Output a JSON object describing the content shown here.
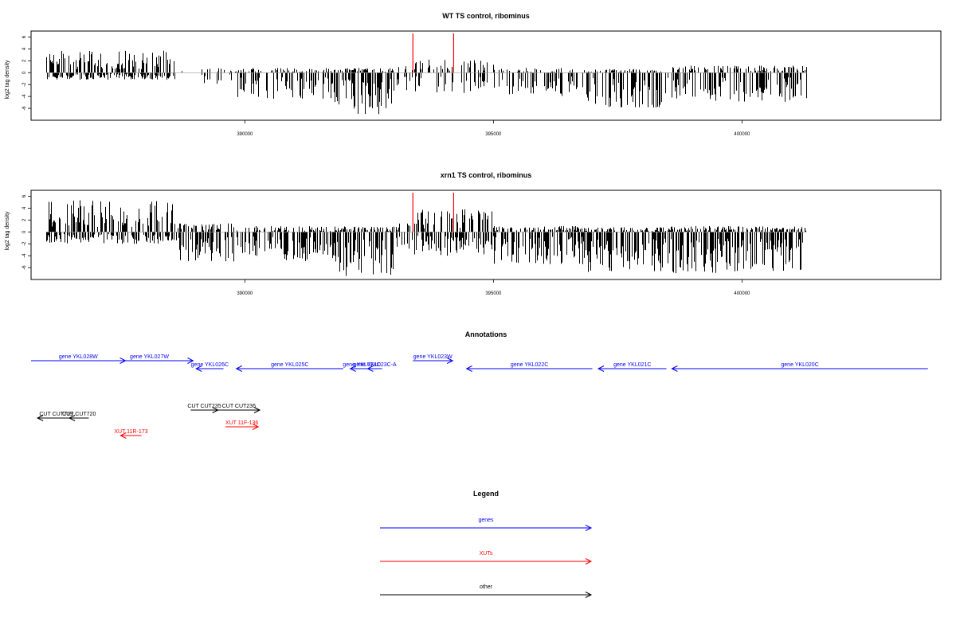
{
  "chart_data": [
    {
      "type": "bar",
      "title": "WT TS control, ribominus",
      "ylabel": "log2 tag density",
      "xlabel": "",
      "xlim": [
        385700,
        404000
      ],
      "ylim": [
        -8,
        7
      ],
      "yticks": [
        -6,
        -4,
        -2,
        0,
        2,
        4,
        6
      ],
      "xticks": [
        390000,
        395000,
        400000
      ],
      "xtick_labels": [
        "390000",
        "395000",
        "400000"
      ],
      "data_range": [
        386000,
        401300
      ],
      "marker_lines": [
        393380,
        394200
      ],
      "profile": [
        {
          "from": 386000,
          "to": 388600,
          "pos": 3.8,
          "neg": 1.2,
          "density": 1.0
        },
        {
          "from": 388600,
          "to": 389800,
          "pos": 1.0,
          "neg": 2.0,
          "density": 0.2
        },
        {
          "from": 389800,
          "to": 391800,
          "pos": 0.8,
          "neg": 4.5,
          "density": 0.7
        },
        {
          "from": 391800,
          "to": 393000,
          "pos": 0.8,
          "neg": 7.0,
          "density": 1.0
        },
        {
          "from": 393000,
          "to": 393400,
          "pos": 1.2,
          "neg": 3.0,
          "density": 0.3
        },
        {
          "from": 393400,
          "to": 395000,
          "pos": 2.2,
          "neg": 3.5,
          "density": 0.5
        },
        {
          "from": 395000,
          "to": 396800,
          "pos": 0.8,
          "neg": 4.0,
          "density": 0.6
        },
        {
          "from": 396800,
          "to": 398500,
          "pos": 0.6,
          "neg": 6.0,
          "density": 0.8
        },
        {
          "from": 398500,
          "to": 401300,
          "pos": 1.2,
          "neg": 5.0,
          "density": 0.8
        }
      ]
    },
    {
      "type": "bar",
      "title": "xrn1 TS control, ribominus",
      "ylabel": "log2 tag density",
      "xlabel": "",
      "xlim": [
        385700,
        404000
      ],
      "ylim": [
        -8,
        7
      ],
      "yticks": [
        -6,
        -4,
        -2,
        0,
        2,
        4,
        6
      ],
      "xticks": [
        390000,
        395000,
        400000
      ],
      "xtick_labels": [
        "390000",
        "395000",
        "400000"
      ],
      "data_range": [
        386000,
        401300
      ],
      "marker_lines": [
        393380,
        394200
      ],
      "profile": [
        {
          "from": 386000,
          "to": 388600,
          "pos": 5.5,
          "neg": 2.0,
          "density": 1.0
        },
        {
          "from": 388600,
          "to": 389800,
          "pos": 1.5,
          "neg": 5.0,
          "density": 0.7
        },
        {
          "from": 389800,
          "to": 391800,
          "pos": 1.0,
          "neg": 5.0,
          "density": 0.8
        },
        {
          "from": 391800,
          "to": 393000,
          "pos": 1.0,
          "neg": 7.5,
          "density": 1.0
        },
        {
          "from": 393000,
          "to": 393400,
          "pos": 1.5,
          "neg": 3.0,
          "density": 0.5
        },
        {
          "from": 393400,
          "to": 395000,
          "pos": 3.8,
          "neg": 4.0,
          "density": 0.9
        },
        {
          "from": 395000,
          "to": 396800,
          "pos": 1.0,
          "neg": 5.5,
          "density": 0.9
        },
        {
          "from": 396800,
          "to": 398500,
          "pos": 0.8,
          "neg": 7.0,
          "density": 1.0
        },
        {
          "from": 398500,
          "to": 401300,
          "pos": 1.0,
          "neg": 7.0,
          "density": 1.0
        }
      ]
    }
  ],
  "annotations": {
    "title": "Annotations",
    "features": [
      {
        "label": "gene YKL028W",
        "kind": "gene",
        "strand": "+",
        "row": 0,
        "start": 385700,
        "end": 387600
      },
      {
        "label": "gene YKL027W",
        "kind": "gene",
        "strand": "+",
        "row": 0,
        "start": 387200,
        "end": 388960
      },
      {
        "label": "gene YKL026C",
        "kind": "gene",
        "strand": "-",
        "row": 1,
        "start": 389020,
        "end": 389570
      },
      {
        "label": "gene YKL025C",
        "kind": "gene",
        "strand": "-",
        "row": 1,
        "start": 389830,
        "end": 391980
      },
      {
        "label": "gene YKL024C",
        "kind": "gene",
        "strand": "-",
        "row": 1,
        "start": 392120,
        "end": 392580
      },
      {
        "label": "gene YKL023C-A",
        "kind": "gene",
        "strand": "-",
        "row": 1,
        "start": 392470,
        "end": 392760
      },
      {
        "label": "gene YKL023W",
        "kind": "gene",
        "strand": "+",
        "row": 0,
        "start": 393380,
        "end": 394180
      },
      {
        "label": "gene YKL022C",
        "kind": "gene",
        "strand": "-",
        "row": 1,
        "start": 394460,
        "end": 396990
      },
      {
        "label": "gene YKL021C",
        "kind": "gene",
        "strand": "-",
        "row": 1,
        "start": 397110,
        "end": 398480
      },
      {
        "label": "gene YKL020C",
        "kind": "gene",
        "strand": "-",
        "row": 1,
        "start": 398590,
        "end": 403740
      },
      {
        "label": "CUT CUT719",
        "kind": "other",
        "strand": "-",
        "row": 4,
        "start": 385830,
        "end": 386580
      },
      {
        "label": "CUT CUT720",
        "kind": "other",
        "strand": "-",
        "row": 4,
        "start": 386470,
        "end": 386860
      },
      {
        "label": "CUT CUT235",
        "kind": "other",
        "strand": "+",
        "row": 3,
        "start": 388910,
        "end": 389460
      },
      {
        "label": "CUT CUT236",
        "kind": "other",
        "strand": "+",
        "row": 3,
        "start": 389460,
        "end": 390300
      },
      {
        "label": "XUT 11R-173",
        "kind": "xut",
        "strand": "-",
        "row": 6,
        "start": 387500,
        "end": 387920
      },
      {
        "label": "XUT 11F-136",
        "kind": "xut",
        "strand": "+",
        "row": 5,
        "start": 389610,
        "end": 390270
      }
    ]
  },
  "legend": {
    "title": "Legend",
    "items": [
      {
        "label": "genes",
        "color": "#0000ff"
      },
      {
        "label": "XUTs",
        "color": "#ff0000"
      },
      {
        "label": "other",
        "color": "#000000"
      }
    ]
  },
  "colors": {
    "bars": "#000000",
    "markers": "#ff0000",
    "gene": "#0000ff",
    "xut": "#ff0000",
    "other": "#000000",
    "axis": "#000000"
  }
}
